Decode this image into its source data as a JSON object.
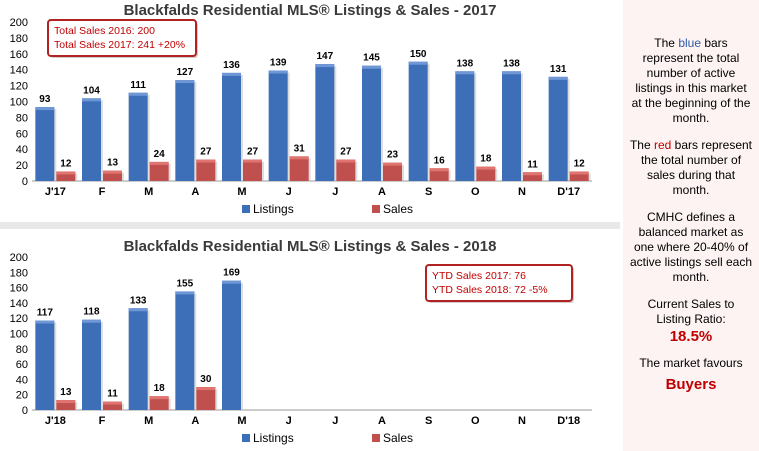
{
  "chart_data": [
    {
      "type": "bar",
      "title": "Blackfalds Residential MLS® Listings & Sales - 2017",
      "categories": [
        "J'17",
        "F",
        "M",
        "A",
        "M",
        "J",
        "J",
        "A",
        "S",
        "O",
        "N",
        "D'17"
      ],
      "series": [
        {
          "name": "Listings",
          "color": "#3d6fb8",
          "values": [
            93,
            104,
            111,
            127,
            136,
            139,
            147,
            145,
            150,
            138,
            138,
            131
          ]
        },
        {
          "name": "Sales",
          "color": "#c0504d",
          "values": [
            12,
            13,
            24,
            27,
            27,
            31,
            27,
            23,
            16,
            18,
            11,
            12
          ]
        }
      ],
      "ylim": [
        0,
        200
      ],
      "yticks": [
        0,
        20,
        40,
        60,
        80,
        100,
        120,
        140,
        160,
        180,
        200
      ],
      "legend": "bottom",
      "callout": [
        "Total Sales 2016: 200",
        "Total Sales 2017: 241 +20%"
      ]
    },
    {
      "type": "bar",
      "title": "Blackfalds Residential MLS® Listings & Sales - 2018",
      "categories": [
        "J'18",
        "F",
        "M",
        "A",
        "M",
        "J",
        "J",
        "A",
        "S",
        "O",
        "N",
        "D'18"
      ],
      "series": [
        {
          "name": "Listings",
          "color": "#3d6fb8",
          "values": [
            117,
            118,
            133,
            155,
            169,
            null,
            null,
            null,
            null,
            null,
            null,
            null
          ]
        },
        {
          "name": "Sales",
          "color": "#c0504d",
          "values": [
            13,
            11,
            18,
            30,
            null,
            null,
            null,
            null,
            null,
            null,
            null,
            null
          ]
        }
      ],
      "ylim": [
        0,
        200
      ],
      "yticks": [
        0,
        20,
        40,
        60,
        80,
        100,
        120,
        140,
        160,
        180,
        200
      ],
      "legend": "bottom",
      "callout": [
        "YTD Sales 2017: 76",
        "YTD Sales 2018: 72 -5%"
      ]
    }
  ],
  "sidebar": {
    "p1_pre": "The ",
    "p1_kw": "blue",
    "p1_post": " bars represent the total number of active listings in this market at the beginning of the month.",
    "p2_pre": "The ",
    "p2_kw": "red",
    "p2_post": " bars represent the total number of sales during that month.",
    "p3": "CMHC defines a balanced market as one where 20-40% of active listings sell each month.",
    "p4": "Current Sales to Listing Ratio:",
    "ratio": "18.5%",
    "p5": "The market favours",
    "favour": "Buyers"
  }
}
